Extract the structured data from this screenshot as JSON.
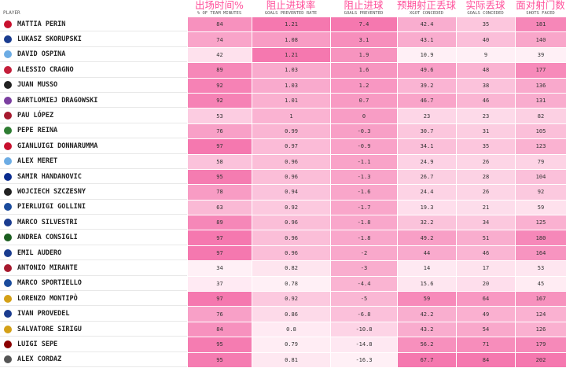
{
  "table": {
    "player_header": "PLAYER",
    "columns": [
      {
        "title": "出场时间%",
        "subtitle": "% OF TEAM MINUTES"
      },
      {
        "title": "阻止进球率",
        "subtitle": "GOALS PREVENTED RATE"
      },
      {
        "title": "阻止进球",
        "subtitle": "GOALS PREVENTED"
      },
      {
        "title": "预期射正丢球",
        "subtitle": "XGOT CONCEDED"
      },
      {
        "title": "实际丢球",
        "subtitle": "GOALS CONCEDED"
      },
      {
        "title": "面对射门数",
        "subtitle": "SHOTS FACED"
      }
    ],
    "rows": [
      {
        "player": "MATTIA PERIN",
        "values": [
          84,
          1.21,
          7.4,
          42.4,
          35,
          181
        ]
      },
      {
        "player": "LUKASZ SKORUPSKI",
        "values": [
          74,
          1.08,
          3.1,
          43.1,
          40,
          140
        ]
      },
      {
        "player": "DAVID OSPINA",
        "values": [
          42,
          1.21,
          1.9,
          10.9,
          9,
          39
        ]
      },
      {
        "player": "ALESSIO CRAGNO",
        "values": [
          89,
          1.03,
          1.6,
          49.6,
          48,
          177
        ]
      },
      {
        "player": "JUAN MUSSO",
        "values": [
          92,
          1.03,
          1.2,
          39.2,
          38,
          136
        ]
      },
      {
        "player": "BARTLOMIEJ DRAGOWSKI",
        "values": [
          92,
          1.01,
          0.7,
          46.7,
          46,
          131
        ]
      },
      {
        "player": "PAU LÓPEZ",
        "values": [
          53,
          1,
          0,
          23,
          23,
          82
        ]
      },
      {
        "player": "PEPE REINA",
        "values": [
          76,
          0.99,
          -0.3,
          30.7,
          31,
          105
        ]
      },
      {
        "player": "GIANLUIGI DONNARUMMA",
        "values": [
          97,
          0.97,
          -0.9,
          34.1,
          35,
          123
        ]
      },
      {
        "player": "ALEX MERET",
        "values": [
          58,
          0.96,
          -1.1,
          24.9,
          26,
          79
        ]
      },
      {
        "player": "SAMIR HANDANOVIC",
        "values": [
          95,
          0.96,
          -1.3,
          26.7,
          28,
          104
        ]
      },
      {
        "player": "WOJCIECH SZCZESNY",
        "values": [
          78,
          0.94,
          -1.6,
          24.4,
          26,
          92
        ]
      },
      {
        "player": "PIERLUIGI GOLLINI",
        "values": [
          63,
          0.92,
          -1.7,
          19.3,
          21,
          59
        ]
      },
      {
        "player": "MARCO SILVESTRI",
        "values": [
          89,
          0.96,
          -1.8,
          32.2,
          34,
          125
        ]
      },
      {
        "player": "ANDREA CONSIGLI",
        "values": [
          97,
          0.96,
          -1.8,
          49.2,
          51,
          180
        ]
      },
      {
        "player": "EMIL AUDERO",
        "values": [
          97,
          0.96,
          -2,
          44,
          46,
          164
        ]
      },
      {
        "player": "ANTONIO MIRANTE",
        "values": [
          34,
          0.82,
          -3,
          14,
          17,
          53
        ]
      },
      {
        "player": "MARCO SPORTIELLO",
        "values": [
          37,
          0.78,
          -4.4,
          15.6,
          20,
          45
        ]
      },
      {
        "player": "LORENZO MONTIPÒ",
        "values": [
          97,
          0.92,
          -5,
          59,
          64,
          167
        ]
      },
      {
        "player": "IVAN PROVEDEL",
        "values": [
          76,
          0.86,
          -6.8,
          42.2,
          49,
          124
        ]
      },
      {
        "player": "SALVATORE SIRIGU",
        "values": [
          84,
          0.8,
          -10.8,
          43.2,
          54,
          126
        ]
      },
      {
        "player": "LUIGI SEPE",
        "values": [
          95,
          0.79,
          -14.8,
          56.2,
          71,
          179
        ]
      },
      {
        "player": "ALEX CORDAZ",
        "values": [
          95,
          0.81,
          -16.3,
          67.7,
          84,
          202
        ]
      }
    ]
  }
}
